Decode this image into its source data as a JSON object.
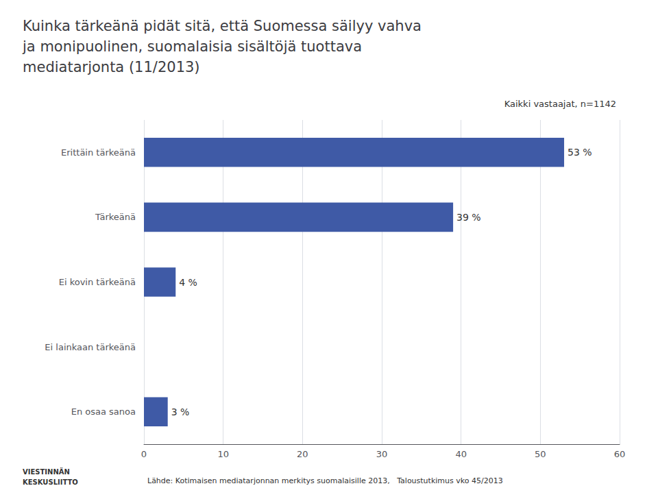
{
  "chart_data": {
    "type": "bar",
    "orientation": "horizontal",
    "title": "Kuinka tärkeänä pidät sitä, että Suomessa säilyy vahva\nja monipuolinen, suomalaisia sisältöjä tuottava\nmediatarjonta (11/2013)",
    "subtitle": "Kaikki vastaajat, n=1142",
    "annotations": [
      "Lähde: Kotimaisen mediatarjonnan merkitys suomalaisille 2013,   Taloustutkimus vko 45/2013",
      "VIESTINNÄN\nKESKUSLIITTO"
    ],
    "categories": [
      "Erittäin tärkeänä",
      "Tärkeänä",
      "Ei kovin tärkeänä",
      "Ei lainkaan tärkeänä",
      "En osaa sanoa"
    ],
    "values": [
      53,
      39,
      4,
      0,
      3
    ],
    "value_labels": [
      "53 %",
      "39 %",
      "4 %",
      null,
      "3 %"
    ],
    "data_labels": true,
    "color": "#3F5AA6",
    "xlim": [
      0,
      60
    ],
    "xticks": [
      0,
      10,
      20,
      30,
      40,
      50,
      60
    ],
    "grid": true
  }
}
